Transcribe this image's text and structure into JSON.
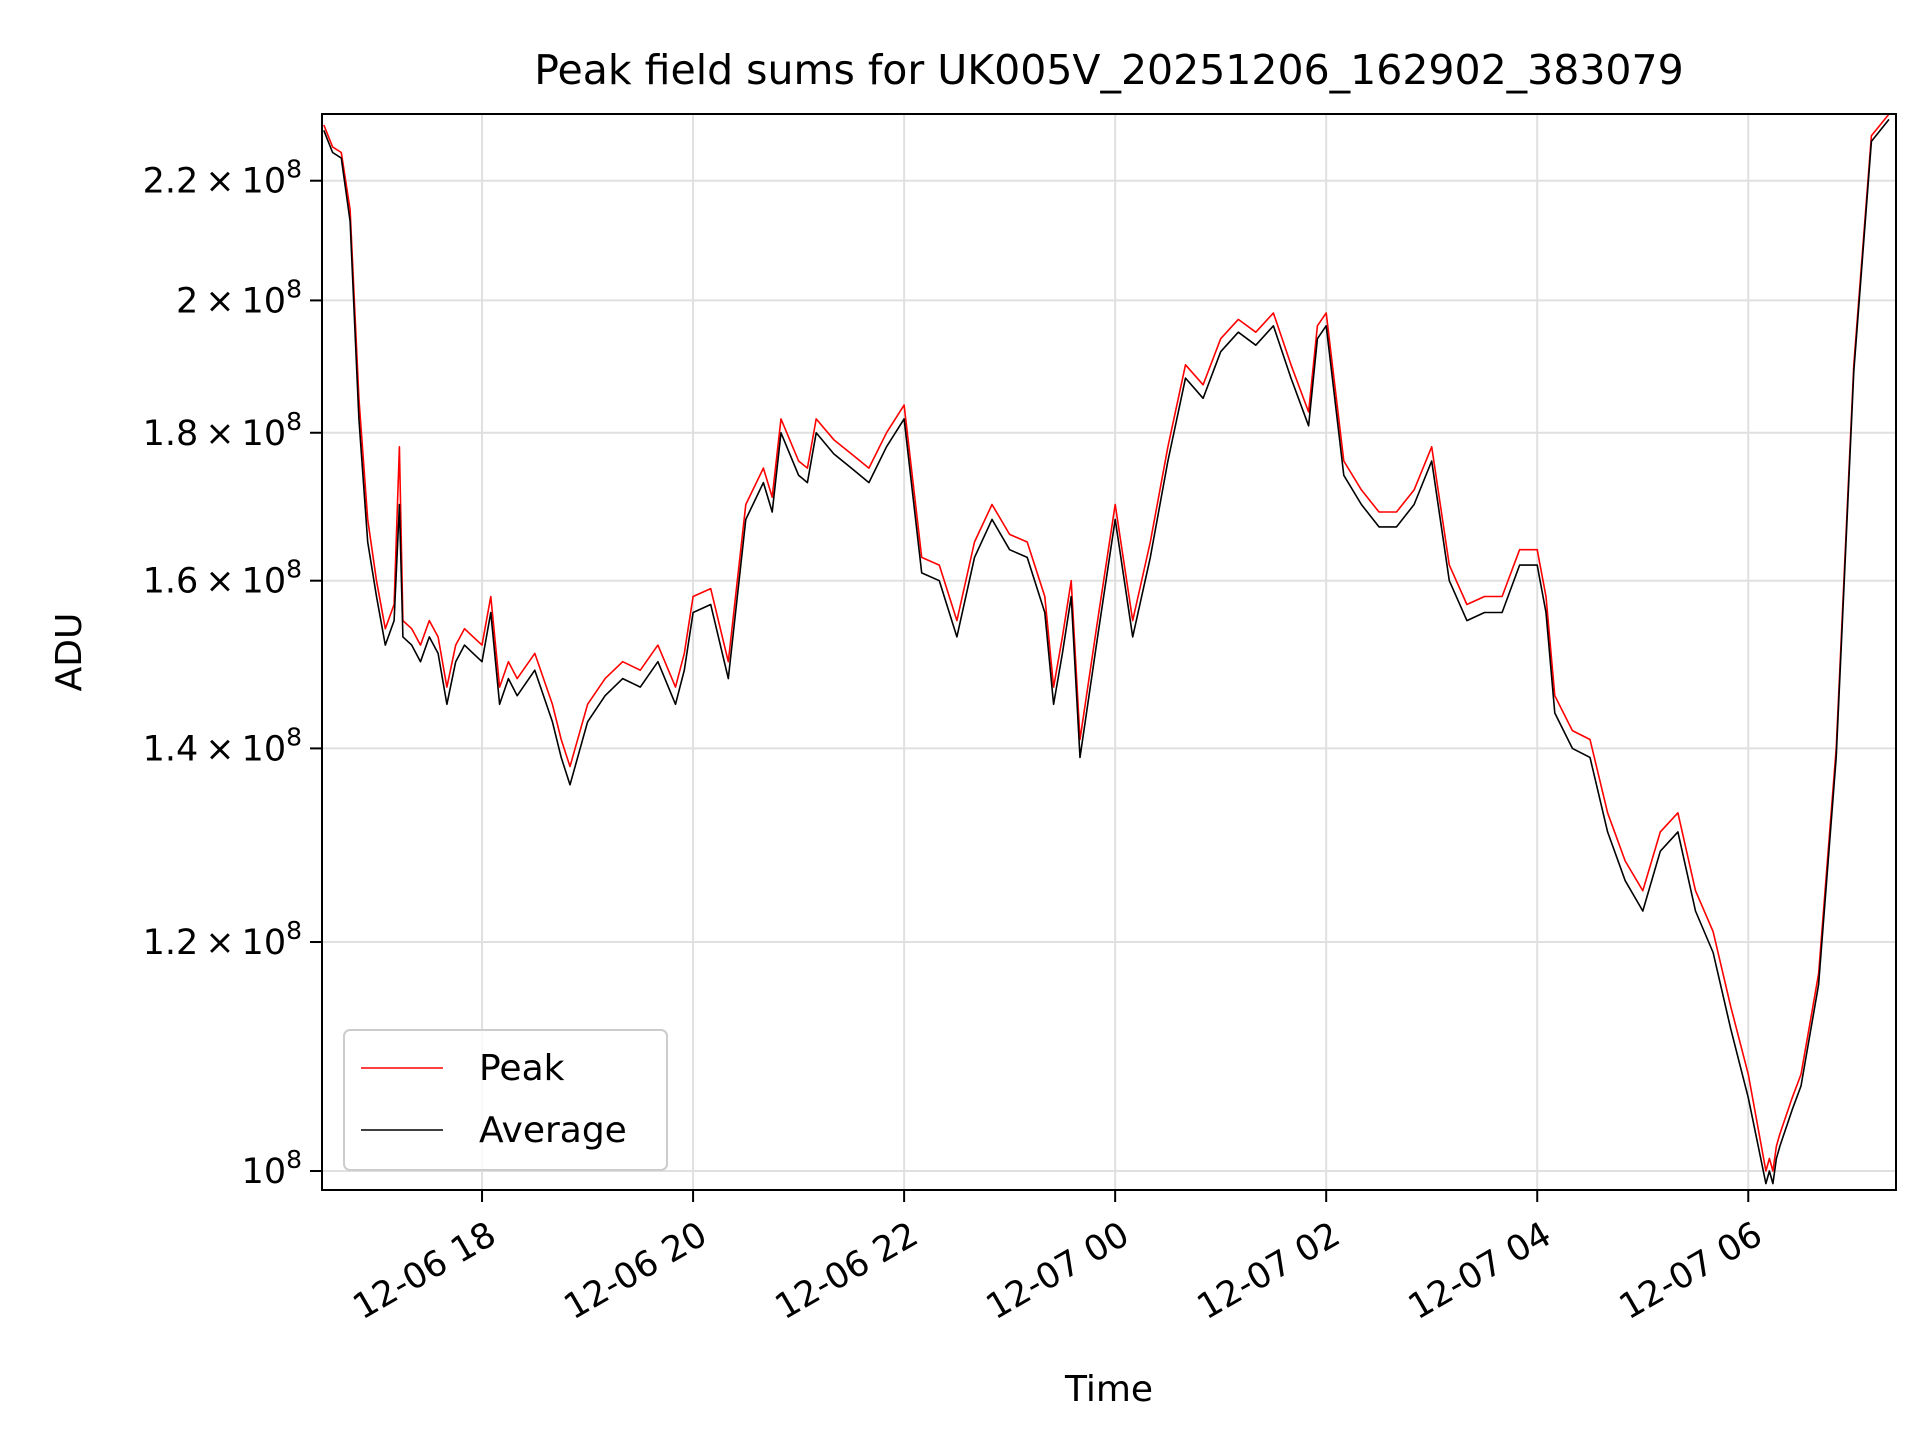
{
  "chart_data": {
    "type": "line",
    "title": "Peak field sums for UK005V_20251206_162902_383079",
    "xlabel": "Time",
    "ylabel": "ADU",
    "y_scale": "log",
    "grid": true,
    "legend_position": "lower-left",
    "xlim": [
      "2025-12-06 16:29",
      "2025-12-07 07:24"
    ],
    "ylim": [
      98500000,
      232000000
    ],
    "x_ticks": [
      "12-06 18",
      "12-06 20",
      "12-06 22",
      "12-07 00",
      "12-07 02",
      "12-07 04",
      "12-07 06"
    ],
    "x_tick_values": [
      "2025-12-06 18:00",
      "2025-12-06 20:00",
      "2025-12-06 22:00",
      "2025-12-07 00:00",
      "2025-12-07 02:00",
      "2025-12-07 04:00",
      "2025-12-07 06:00"
    ],
    "y_ticks": [
      {
        "value": 100000000,
        "mantissa": "",
        "label": "10"
      },
      {
        "value": 120000000,
        "mantissa": "1.2",
        "label": "10"
      },
      {
        "value": 140000000,
        "mantissa": "1.4",
        "label": "10"
      },
      {
        "value": 160000000,
        "mantissa": "1.6",
        "label": "10"
      },
      {
        "value": 180000000,
        "mantissa": "1.8",
        "label": "10"
      },
      {
        "value": 200000000,
        "mantissa": "2",
        "label": "10"
      },
      {
        "value": 220000000,
        "mantissa": "2.2",
        "label": "10"
      }
    ],
    "y_tick_exponent": "8",
    "series": [
      {
        "name": "Peak",
        "color": "#ff0000",
        "x": [
          "2025-12-06 16:30",
          "2025-12-06 16:35",
          "2025-12-06 16:40",
          "2025-12-06 16:45",
          "2025-12-06 16:50",
          "2025-12-06 16:55",
          "2025-12-06 17:00",
          "2025-12-06 17:05",
          "2025-12-06 17:10",
          "2025-12-06 17:13",
          "2025-12-06 17:15",
          "2025-12-06 17:20",
          "2025-12-06 17:25",
          "2025-12-06 17:30",
          "2025-12-06 17:35",
          "2025-12-06 17:40",
          "2025-12-06 17:45",
          "2025-12-06 17:50",
          "2025-12-06 17:55",
          "2025-12-06 18:00",
          "2025-12-06 18:05",
          "2025-12-06 18:10",
          "2025-12-06 18:15",
          "2025-12-06 18:20",
          "2025-12-06 18:30",
          "2025-12-06 18:40",
          "2025-12-06 18:45",
          "2025-12-06 18:50",
          "2025-12-06 19:00",
          "2025-12-06 19:10",
          "2025-12-06 19:20",
          "2025-12-06 19:30",
          "2025-12-06 19:40",
          "2025-12-06 19:50",
          "2025-12-06 19:55",
          "2025-12-06 20:00",
          "2025-12-06 20:10",
          "2025-12-06 20:20",
          "2025-12-06 20:30",
          "2025-12-06 20:40",
          "2025-12-06 20:45",
          "2025-12-06 20:50",
          "2025-12-06 21:00",
          "2025-12-06 21:05",
          "2025-12-06 21:10",
          "2025-12-06 21:20",
          "2025-12-06 21:30",
          "2025-12-06 21:40",
          "2025-12-06 21:50",
          "2025-12-06 22:00",
          "2025-12-06 22:10",
          "2025-12-06 22:20",
          "2025-12-06 22:30",
          "2025-12-06 22:40",
          "2025-12-06 22:50",
          "2025-12-06 23:00",
          "2025-12-06 23:10",
          "2025-12-06 23:20",
          "2025-12-06 23:25",
          "2025-12-06 23:30",
          "2025-12-06 23:35",
          "2025-12-06 23:40",
          "2025-12-06 23:50",
          "2025-12-07 00:00",
          "2025-12-07 00:10",
          "2025-12-07 00:20",
          "2025-12-07 00:30",
          "2025-12-07 00:40",
          "2025-12-07 00:50",
          "2025-12-07 01:00",
          "2025-12-07 01:10",
          "2025-12-07 01:20",
          "2025-12-07 01:30",
          "2025-12-07 01:40",
          "2025-12-07 01:50",
          "2025-12-07 01:55",
          "2025-12-07 02:00",
          "2025-12-07 02:10",
          "2025-12-07 02:20",
          "2025-12-07 02:30",
          "2025-12-07 02:40",
          "2025-12-07 02:50",
          "2025-12-07 03:00",
          "2025-12-07 03:10",
          "2025-12-07 03:20",
          "2025-12-07 03:30",
          "2025-12-07 03:40",
          "2025-12-07 03:50",
          "2025-12-07 04:00",
          "2025-12-07 04:05",
          "2025-12-07 04:10",
          "2025-12-07 04:20",
          "2025-12-07 04:30",
          "2025-12-07 04:40",
          "2025-12-07 04:50",
          "2025-12-07 05:00",
          "2025-12-07 05:10",
          "2025-12-07 05:20",
          "2025-12-07 05:30",
          "2025-12-07 05:40",
          "2025-12-07 05:50",
          "2025-12-07 06:00",
          "2025-12-07 06:10",
          "2025-12-07 06:12",
          "2025-12-07 06:14",
          "2025-12-07 06:16",
          "2025-12-07 06:18",
          "2025-12-07 06:25",
          "2025-12-07 06:30",
          "2025-12-07 06:40",
          "2025-12-07 06:50",
          "2025-12-07 07:00",
          "2025-12-07 07:10",
          "2025-12-07 07:20"
        ],
        "values": [
          230000000,
          226000000,
          225000000,
          215000000,
          185000000,
          168000000,
          160000000,
          154000000,
          157000000,
          178000000,
          155000000,
          154000000,
          152000000,
          155000000,
          153000000,
          147000000,
          152000000,
          154000000,
          153000000,
          152000000,
          158000000,
          147000000,
          150000000,
          148000000,
          151000000,
          145000000,
          141000000,
          138000000,
          145000000,
          148000000,
          150000000,
          149000000,
          152000000,
          147000000,
          151000000,
          158000000,
          159000000,
          150000000,
          170000000,
          175000000,
          171000000,
          182000000,
          176000000,
          175000000,
          182000000,
          179000000,
          177000000,
          175000000,
          180000000,
          184000000,
          163000000,
          162000000,
          155000000,
          165000000,
          170000000,
          166000000,
          165000000,
          158000000,
          147000000,
          153000000,
          160000000,
          141000000,
          155000000,
          170000000,
          155000000,
          165000000,
          178000000,
          190000000,
          187000000,
          194000000,
          197000000,
          195000000,
          198000000,
          190000000,
          183000000,
          196000000,
          198000000,
          176000000,
          172000000,
          169000000,
          169000000,
          172000000,
          178000000,
          162000000,
          157000000,
          158000000,
          158000000,
          164000000,
          164000000,
          158000000,
          146000000,
          142000000,
          141000000,
          133000000,
          128000000,
          125000000,
          131000000,
          133000000,
          125000000,
          121000000,
          114000000,
          108000000,
          100000000,
          101000000,
          100000000,
          102000000,
          103000000,
          106000000,
          108000000,
          117000000,
          140000000,
          190000000,
          228000000,
          232000000
        ]
      },
      {
        "name": "Average",
        "color": "#000000",
        "x": [
          "2025-12-06 16:30",
          "2025-12-06 16:35",
          "2025-12-06 16:40",
          "2025-12-06 16:45",
          "2025-12-06 16:50",
          "2025-12-06 16:55",
          "2025-12-06 17:00",
          "2025-12-06 17:05",
          "2025-12-06 17:10",
          "2025-12-06 17:13",
          "2025-12-06 17:15",
          "2025-12-06 17:20",
          "2025-12-06 17:25",
          "2025-12-06 17:30",
          "2025-12-06 17:35",
          "2025-12-06 17:40",
          "2025-12-06 17:45",
          "2025-12-06 17:50",
          "2025-12-06 17:55",
          "2025-12-06 18:00",
          "2025-12-06 18:05",
          "2025-12-06 18:10",
          "2025-12-06 18:15",
          "2025-12-06 18:20",
          "2025-12-06 18:30",
          "2025-12-06 18:40",
          "2025-12-06 18:45",
          "2025-12-06 18:50",
          "2025-12-06 19:00",
          "2025-12-06 19:10",
          "2025-12-06 19:20",
          "2025-12-06 19:30",
          "2025-12-06 19:40",
          "2025-12-06 19:50",
          "2025-12-06 19:55",
          "2025-12-06 20:00",
          "2025-12-06 20:10",
          "2025-12-06 20:20",
          "2025-12-06 20:30",
          "2025-12-06 20:40",
          "2025-12-06 20:45",
          "2025-12-06 20:50",
          "2025-12-06 21:00",
          "2025-12-06 21:05",
          "2025-12-06 21:10",
          "2025-12-06 21:20",
          "2025-12-06 21:30",
          "2025-12-06 21:40",
          "2025-12-06 21:50",
          "2025-12-06 22:00",
          "2025-12-06 22:10",
          "2025-12-06 22:20",
          "2025-12-06 22:30",
          "2025-12-06 22:40",
          "2025-12-06 22:50",
          "2025-12-06 23:00",
          "2025-12-06 23:10",
          "2025-12-06 23:20",
          "2025-12-06 23:25",
          "2025-12-06 23:30",
          "2025-12-06 23:35",
          "2025-12-06 23:40",
          "2025-12-06 23:50",
          "2025-12-07 00:00",
          "2025-12-07 00:10",
          "2025-12-07 00:20",
          "2025-12-07 00:30",
          "2025-12-07 00:40",
          "2025-12-07 00:50",
          "2025-12-07 01:00",
          "2025-12-07 01:10",
          "2025-12-07 01:20",
          "2025-12-07 01:30",
          "2025-12-07 01:40",
          "2025-12-07 01:50",
          "2025-12-07 01:55",
          "2025-12-07 02:00",
          "2025-12-07 02:10",
          "2025-12-07 02:20",
          "2025-12-07 02:30",
          "2025-12-07 02:40",
          "2025-12-07 02:50",
          "2025-12-07 03:00",
          "2025-12-07 03:10",
          "2025-12-07 03:20",
          "2025-12-07 03:30",
          "2025-12-07 03:40",
          "2025-12-07 03:50",
          "2025-12-07 04:00",
          "2025-12-07 04:05",
          "2025-12-07 04:10",
          "2025-12-07 04:20",
          "2025-12-07 04:30",
          "2025-12-07 04:40",
          "2025-12-07 04:50",
          "2025-12-07 05:00",
          "2025-12-07 05:10",
          "2025-12-07 05:20",
          "2025-12-07 05:30",
          "2025-12-07 05:40",
          "2025-12-07 05:50",
          "2025-12-07 06:00",
          "2025-12-07 06:10",
          "2025-12-07 06:12",
          "2025-12-07 06:14",
          "2025-12-07 06:16",
          "2025-12-07 06:18",
          "2025-12-07 06:25",
          "2025-12-07 06:30",
          "2025-12-07 06:40",
          "2025-12-07 06:50",
          "2025-12-07 07:00",
          "2025-12-07 07:10",
          "2025-12-07 07:20"
        ],
        "values": [
          229000000,
          225000000,
          224000000,
          213000000,
          182000000,
          165000000,
          158000000,
          152000000,
          155000000,
          170000000,
          153000000,
          152000000,
          150000000,
          153000000,
          151000000,
          145000000,
          150000000,
          152000000,
          151000000,
          150000000,
          156000000,
          145000000,
          148000000,
          146000000,
          149000000,
          143000000,
          139000000,
          136000000,
          143000000,
          146000000,
          148000000,
          147000000,
          150000000,
          145000000,
          149000000,
          156000000,
          157000000,
          148000000,
          168000000,
          173000000,
          169000000,
          180000000,
          174000000,
          173000000,
          180000000,
          177000000,
          175000000,
          173000000,
          178000000,
          182000000,
          161000000,
          160000000,
          153000000,
          163000000,
          168000000,
          164000000,
          163000000,
          156000000,
          145000000,
          151000000,
          158000000,
          139000000,
          153000000,
          168000000,
          153000000,
          163000000,
          176000000,
          188000000,
          185000000,
          192000000,
          195000000,
          193000000,
          196000000,
          188000000,
          181000000,
          194000000,
          196000000,
          174000000,
          170000000,
          167000000,
          167000000,
          170000000,
          176000000,
          160000000,
          155000000,
          156000000,
          156000000,
          162000000,
          162000000,
          156000000,
          144000000,
          140000000,
          139000000,
          131000000,
          126000000,
          123000000,
          129000000,
          131000000,
          123000000,
          119000000,
          112000000,
          106000000,
          99000000,
          100000000,
          99000000,
          101000000,
          102000000,
          105000000,
          107000000,
          116000000,
          139000000,
          189000000,
          227000000,
          231000000
        ]
      }
    ]
  }
}
